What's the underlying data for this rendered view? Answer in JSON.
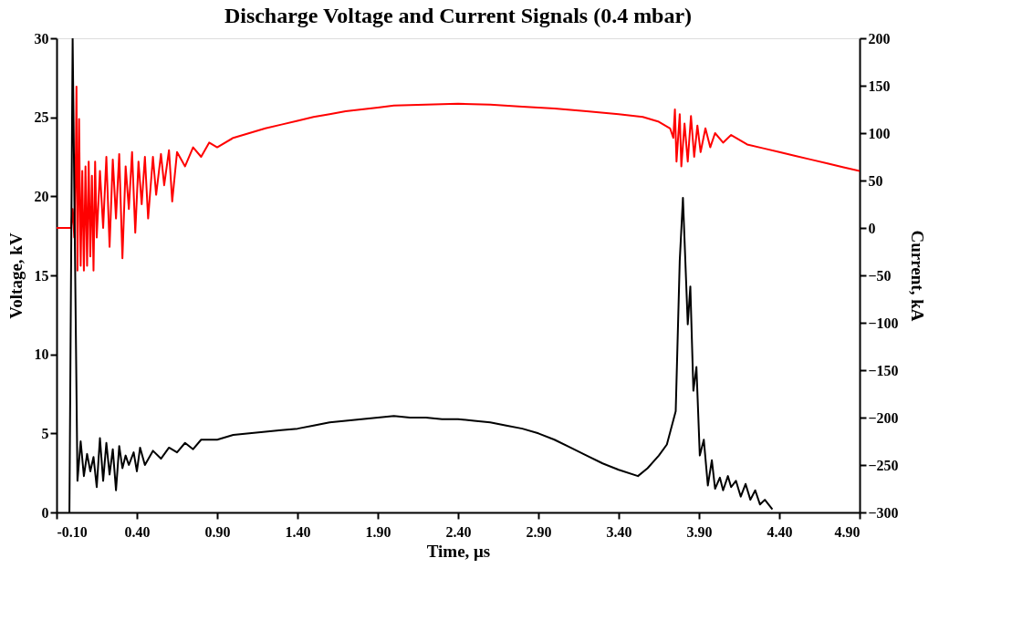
{
  "chart_data": {
    "type": "line",
    "title": "Discharge Voltage and Current Signals (0.4 mbar)",
    "xlabel": "Time, μs",
    "ylabel": "Voltage, kV",
    "y2label": "Current, kA",
    "xlim": [
      -0.1,
      4.9
    ],
    "xticks": [
      {
        "value": -0.1,
        "label": "-0.10"
      },
      {
        "value": 0.4,
        "label": "0.40"
      },
      {
        "value": 0.9,
        "label": "0.90"
      },
      {
        "value": 1.4,
        "label": "1.40"
      },
      {
        "value": 1.9,
        "label": "1.90"
      },
      {
        "value": 2.4,
        "label": "2.40"
      },
      {
        "value": 2.9,
        "label": "2.90"
      },
      {
        "value": 3.4,
        "label": "3.40"
      },
      {
        "value": 3.9,
        "label": "3.90"
      },
      {
        "value": 4.4,
        "label": "4.40"
      },
      {
        "value": 4.9,
        "label": "4.90"
      }
    ],
    "ylim": [
      0,
      30
    ],
    "yticks": [
      0,
      5,
      10,
      15,
      20,
      25,
      30
    ],
    "y2lim": [
      -300,
      200
    ],
    "y2ticks": [
      -300,
      -250,
      -200,
      -150,
      -100,
      -50,
      0,
      50,
      100,
      150,
      200
    ],
    "grid": false,
    "marker": "none",
    "line_style": "solid",
    "series": [
      {
        "color": "#ff0000",
        "axis": "y2",
        "x": [
          -0.1,
          -0.01,
          0.0,
          0.01,
          0.02,
          0.024,
          0.03,
          0.04,
          0.05,
          0.06,
          0.07,
          0.08,
          0.09,
          0.1,
          0.11,
          0.12,
          0.13,
          0.14,
          0.15,
          0.17,
          0.19,
          0.21,
          0.23,
          0.25,
          0.27,
          0.29,
          0.31,
          0.33,
          0.35,
          0.37,
          0.39,
          0.41,
          0.43,
          0.45,
          0.47,
          0.5,
          0.52,
          0.55,
          0.57,
          0.6,
          0.62,
          0.65,
          0.7,
          0.75,
          0.8,
          0.85,
          0.9,
          1.0,
          1.1,
          1.2,
          1.3,
          1.4,
          1.5,
          1.6,
          1.7,
          1.8,
          1.9,
          2.0,
          2.2,
          2.4,
          2.6,
          2.8,
          3.0,
          3.2,
          3.4,
          3.55,
          3.65,
          3.72,
          3.74,
          3.75,
          3.76,
          3.78,
          3.79,
          3.81,
          3.83,
          3.85,
          3.87,
          3.89,
          3.91,
          3.94,
          3.97,
          4.0,
          4.05,
          4.1,
          4.2,
          4.3,
          4.4,
          4.5,
          4.6,
          4.7,
          4.8,
          4.9
        ],
        "values": [
          0,
          0,
          20,
          -10,
          80,
          149,
          -45,
          115,
          -40,
          60,
          -45,
          65,
          -40,
          70,
          -30,
          55,
          -45,
          70,
          -10,
          60,
          0,
          75,
          -20,
          72,
          10,
          78,
          -32,
          65,
          20,
          80,
          -5,
          70,
          25,
          75,
          10,
          75,
          35,
          78,
          45,
          82,
          28,
          80,
          65,
          85,
          75,
          90,
          85,
          95,
          100,
          105,
          109,
          113,
          117,
          120,
          123,
          125,
          127,
          129,
          130,
          131,
          130,
          128,
          126,
          123,
          120,
          117,
          112,
          105,
          95,
          125,
          70,
          120,
          65,
          110,
          70,
          118,
          75,
          108,
          80,
          105,
          85,
          100,
          90,
          98,
          88,
          84,
          80,
          76,
          72,
          68,
          64,
          60
        ]
      },
      {
        "color": "#000000",
        "axis": "y",
        "x": [
          -0.02,
          0.0,
          0.03,
          0.05,
          0.07,
          0.09,
          0.11,
          0.13,
          0.15,
          0.17,
          0.19,
          0.21,
          0.23,
          0.25,
          0.27,
          0.29,
          0.31,
          0.33,
          0.35,
          0.38,
          0.4,
          0.42,
          0.45,
          0.5,
          0.55,
          0.6,
          0.65,
          0.7,
          0.75,
          0.8,
          0.9,
          1.0,
          1.1,
          1.2,
          1.3,
          1.4,
          1.5,
          1.6,
          1.7,
          1.8,
          1.9,
          2.0,
          2.1,
          2.2,
          2.3,
          2.4,
          2.5,
          2.6,
          2.7,
          2.8,
          2.9,
          3.0,
          3.1,
          3.2,
          3.3,
          3.4,
          3.52,
          3.58,
          3.65,
          3.7,
          3.755,
          3.78,
          3.8,
          3.83,
          3.846,
          3.865,
          3.884,
          3.905,
          3.93,
          3.955,
          3.98,
          4.0,
          4.03,
          4.05,
          4.08,
          4.1,
          4.13,
          4.16,
          4.19,
          4.22,
          4.25,
          4.28,
          4.31,
          4.357
        ],
        "values": [
          0,
          30,
          2.0,
          4.5,
          2.3,
          3.7,
          2.6,
          3.5,
          1.6,
          4.7,
          2.0,
          4.4,
          2.4,
          4.0,
          1.4,
          4.2,
          2.8,
          3.6,
          3.0,
          3.8,
          2.6,
          4.1,
          3.0,
          3.9,
          3.4,
          4.1,
          3.8,
          4.4,
          4.0,
          4.6,
          4.6,
          4.9,
          5.0,
          5.1,
          5.2,
          5.3,
          5.5,
          5.7,
          5.8,
          5.9,
          6.0,
          6.1,
          6.0,
          6.0,
          5.9,
          5.9,
          5.8,
          5.7,
          5.5,
          5.3,
          5.0,
          4.6,
          4.1,
          3.6,
          3.1,
          2.7,
          2.3,
          2.8,
          3.6,
          4.3,
          6.4,
          15.9,
          19.9,
          11.9,
          14.3,
          7.7,
          9.2,
          3.6,
          4.6,
          1.7,
          3.3,
          1.5,
          2.2,
          1.4,
          2.3,
          1.6,
          2.0,
          1.0,
          1.8,
          0.8,
          1.4,
          0.5,
          0.8,
          0.2
        ]
      }
    ]
  }
}
